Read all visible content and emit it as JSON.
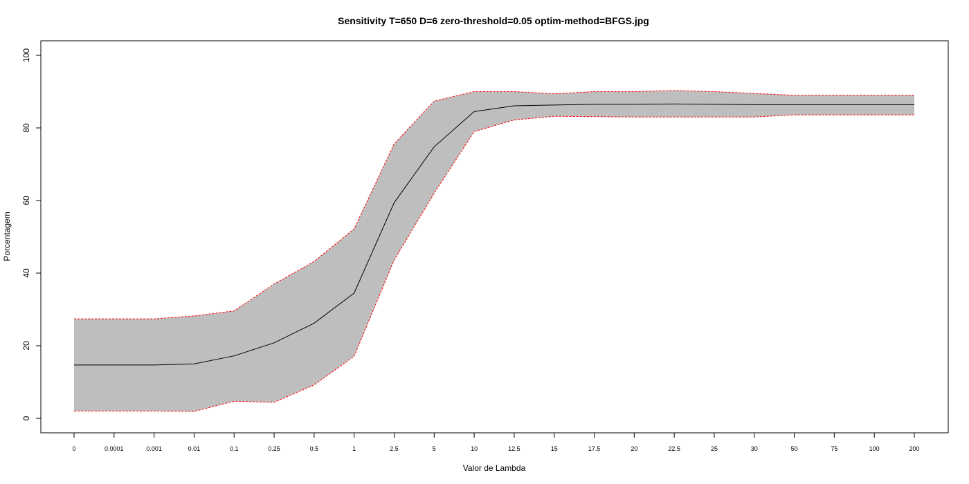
{
  "chart_data": {
    "type": "area",
    "title": "Sensitivity T=650 D=6 zero-threshold=0.05 optim-method=BFGS.jpg",
    "xlabel": "Valor de Lambda",
    "ylabel": "Porcentagem",
    "categories": [
      "0",
      "0.0001",
      "0.001",
      "0.01",
      "0.1",
      "0.25",
      "0.5",
      "1",
      "2.5",
      "5",
      "10",
      "12.5",
      "15",
      "17.5",
      "20",
      "22.5",
      "25",
      "30",
      "50",
      "75",
      "100",
      "200"
    ],
    "ylim": [
      0,
      100
    ],
    "yticks": [
      0,
      20,
      40,
      60,
      80,
      100
    ],
    "grid": false,
    "series": [
      {
        "role": "upper",
        "values": [
          27.4,
          27.4,
          27.4,
          28.2,
          29.6,
          37.0,
          43.2,
          52.2,
          75.6,
          87.4,
          90.0,
          90.0,
          89.4,
          90.0,
          90.0,
          90.3,
          90.0,
          89.5,
          89.0,
          89.0,
          89.0,
          89.0
        ]
      },
      {
        "role": "mean",
        "values": [
          14.7,
          14.7,
          14.7,
          15.0,
          17.2,
          20.8,
          26.2,
          34.5,
          59.4,
          74.8,
          84.5,
          86.1,
          86.3,
          86.5,
          86.5,
          86.6,
          86.5,
          86.4,
          86.4,
          86.4,
          86.4,
          86.4
        ]
      },
      {
        "role": "lower",
        "values": [
          2.0,
          2.0,
          2.0,
          1.9,
          4.7,
          4.4,
          9.2,
          17.1,
          43.6,
          62.0,
          79.0,
          82.2,
          83.2,
          83.1,
          83.0,
          83.0,
          83.0,
          83.0,
          83.6,
          83.6,
          83.6,
          83.6
        ]
      }
    ],
    "colors": {
      "band": "#bebebe",
      "bound_line": "#ff0000",
      "mean_line": "#000000",
      "axis": "#000000"
    }
  }
}
